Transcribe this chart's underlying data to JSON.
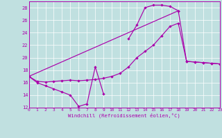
{
  "xlabel": "Windchill (Refroidissement éolien,°C)",
  "xlim": [
    0,
    23
  ],
  "ylim": [
    12,
    29
  ],
  "xticks": [
    0,
    1,
    2,
    3,
    4,
    5,
    6,
    7,
    8,
    9,
    10,
    11,
    12,
    13,
    14,
    15,
    16,
    17,
    18,
    19,
    20,
    21,
    22,
    23
  ],
  "yticks": [
    12,
    14,
    16,
    18,
    20,
    22,
    24,
    26,
    28
  ],
  "bg_color": "#c0e0e0",
  "line_color": "#aa00aa",
  "line1_x": [
    0,
    1,
    2,
    3,
    4,
    5,
    6,
    7,
    8,
    9
  ],
  "line1_y": [
    17.0,
    16.0,
    15.5,
    15.0,
    14.5,
    14.0,
    12.2,
    12.6,
    18.5,
    14.2
  ],
  "line2_x": [
    0,
    1,
    2,
    3,
    4,
    5,
    6,
    7,
    8,
    9,
    10,
    11,
    12,
    13,
    14,
    15,
    16,
    17,
    18,
    19,
    20,
    21,
    22,
    23
  ],
  "line2_y": [
    17.0,
    16.2,
    16.1,
    16.2,
    16.3,
    16.4,
    16.3,
    16.4,
    16.5,
    16.7,
    17.0,
    17.5,
    18.5,
    20.0,
    21.0,
    22.0,
    23.5,
    25.0,
    25.5,
    19.4,
    19.3,
    19.2,
    19.1,
    19.0
  ],
  "line3_x": [
    12,
    13,
    14,
    15,
    16,
    17,
    18
  ],
  "line3_y": [
    23.0,
    25.2,
    28.0,
    28.4,
    28.4,
    28.2,
    27.5
  ],
  "line4_x": [
    0,
    18,
    19,
    20,
    21,
    22,
    23
  ],
  "line4_y": [
    17.0,
    27.5,
    19.4,
    19.3,
    19.2,
    19.1,
    19.0
  ]
}
